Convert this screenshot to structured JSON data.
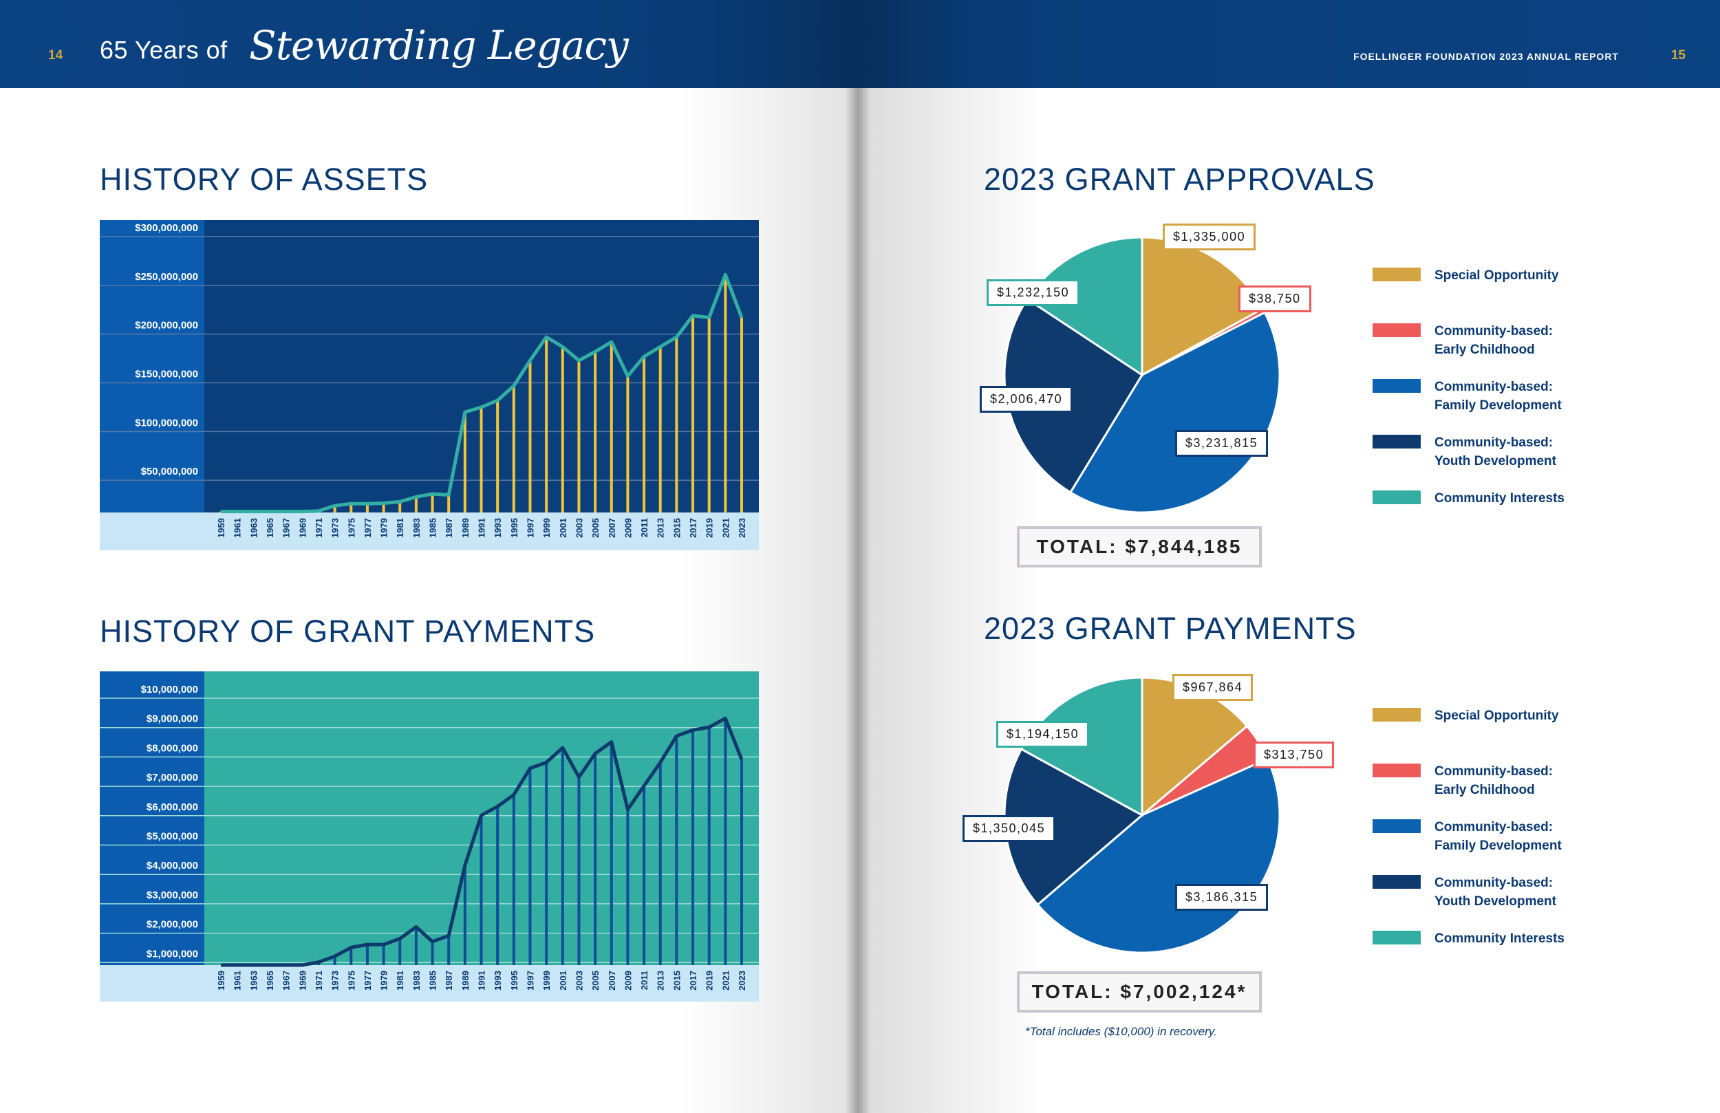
{
  "header": {
    "left_page_number": "14",
    "title_prefix": "65 Years of",
    "title_script": "Stewarding Legacy",
    "report_title": "FOELLINGER FOUNDATION 2023 ANNUAL REPORT",
    "right_page_number": "15"
  },
  "colors": {
    "navy": "#0a3f7c",
    "special_opportunity": "#d4a443",
    "early_childhood": "#ee5a5a",
    "family_development": "#0a62b0",
    "youth_development": "#0e3a6e",
    "community_interests": "#32aea3"
  },
  "assets_section": {
    "title": "HISTORY OF ASSETS"
  },
  "payments_section": {
    "title": "HISTORY OF GRANT PAYMENTS"
  },
  "approvals_section": {
    "title": "2023 GRANT APPROVALS",
    "total": "TOTAL: $7,844,185"
  },
  "grant_payments_section": {
    "title": "2023 GRANT PAYMENTS",
    "total": "TOTAL: $7,002,124*",
    "footnote": "*Total includes ($10,000) in recovery."
  },
  "chart_data": [
    {
      "type": "line",
      "title": "HISTORY OF ASSETS",
      "x": [
        "1959",
        "1961",
        "1963",
        "1965",
        "1967",
        "1969",
        "1971",
        "1973",
        "1975",
        "1977",
        "1979",
        "1981",
        "1983",
        "1985",
        "1987",
        "1989",
        "1991",
        "1993",
        "1995",
        "1997",
        "1999",
        "2001",
        "2003",
        "2005",
        "2007",
        "2009",
        "2011",
        "2013",
        "2015",
        "2017",
        "2019",
        "2021",
        "2023"
      ],
      "values": [
        1000000,
        1000000,
        1000000,
        1000000,
        1000000,
        1000000,
        1500000,
        7000000,
        9000000,
        9000000,
        9500000,
        11000000,
        16000000,
        19000000,
        18000000,
        103000000,
        108000000,
        115000000,
        130000000,
        156000000,
        180000000,
        170000000,
        156000000,
        165000000,
        175000000,
        140000000,
        160000000,
        170000000,
        180000000,
        202000000,
        200000000,
        244000000,
        200000000
      ],
      "y_tick_labels": [
        "$300,000,000",
        "$250,000,000",
        "$200,000,000",
        "$150,000,000",
        "$100,000,000",
        "$50,000,000"
      ],
      "ylim": [
        0,
        300000000
      ],
      "line_color": "#32aea3",
      "bar_color": "#f2c538",
      "grid": true
    },
    {
      "type": "line",
      "title": "HISTORY OF GRANT PAYMENTS",
      "x": [
        "1959",
        "1961",
        "1963",
        "1965",
        "1967",
        "1969",
        "1971",
        "1973",
        "1975",
        "1977",
        "1979",
        "1981",
        "1983",
        "1985",
        "1987",
        "1989",
        "1991",
        "1993",
        "1995",
        "1997",
        "1999",
        "2001",
        "2003",
        "2005",
        "2007",
        "2009",
        "2011",
        "2013",
        "2015",
        "2017",
        "2019",
        "2021",
        "2023"
      ],
      "values": [
        0,
        0,
        0,
        0,
        0,
        0,
        100000,
        300000,
        600000,
        700000,
        700000,
        900000,
        1300000,
        800000,
        1000000,
        3400000,
        5100000,
        5400000,
        5800000,
        6700000,
        6900000,
        7400000,
        6400000,
        7200000,
        7600000,
        5300000,
        6100000,
        6900000,
        7800000,
        8000000,
        8100000,
        8400000,
        7000000
      ],
      "y_tick_labels": [
        "$10,000,000",
        "$9,000,000",
        "$8,000,000",
        "$7,000,000",
        "$6,000,000",
        "$5,000,000",
        "$4,000,000",
        "$3,000,000",
        "$2,000,000",
        "$1,000,000"
      ],
      "ylim": [
        0,
        10000000
      ],
      "line_color": "#0e3a6e",
      "bar_color": "#0e4f96",
      "grid": true
    },
    {
      "type": "pie",
      "title": "2023 GRANT APPROVALS",
      "categories": [
        "Special Opportunity",
        "Community-based: Early Childhood",
        "Community-based: Family Development",
        "Community-based: Youth Development",
        "Community Interests"
      ],
      "values": [
        1335000,
        38750,
        3231815,
        2006470,
        1232150
      ],
      "labels": [
        "$1,335,000",
        "$38,750",
        "$3,231,815",
        "$2,006,470",
        "$1,232,150"
      ],
      "legend": "right"
    },
    {
      "type": "pie",
      "title": "2023 GRANT PAYMENTS",
      "categories": [
        "Special Opportunity",
        "Community-based: Early Childhood",
        "Community-based: Family Development",
        "Community-based: Youth Development",
        "Community Interests"
      ],
      "values": [
        967864,
        313750,
        3186315,
        1350045,
        1194150
      ],
      "labels": [
        "$967,864",
        "$313,750",
        "$3,186,315",
        "$1,350,045",
        "$1,194,150"
      ],
      "legend": "right"
    }
  ],
  "legend_items": [
    {
      "label": "Special Opportunity",
      "color": "#d4a443"
    },
    {
      "label": "Community-based:\nEarly Childhood",
      "color": "#ee5a5a"
    },
    {
      "label": "Community-based:\nFamily Development",
      "color": "#0a62b0"
    },
    {
      "label": "Community-based:\nYouth Development",
      "color": "#0e3a6e"
    },
    {
      "label": "Community Interests",
      "color": "#32aea3"
    }
  ]
}
